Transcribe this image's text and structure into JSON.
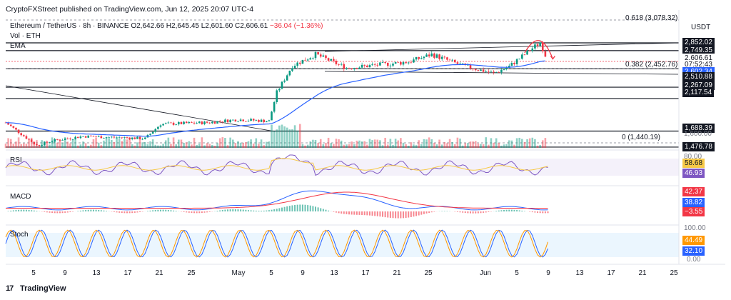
{
  "header": {
    "publisher": "CryptoFXStreet published on TradingView.com, Jun 12, 2025 20:07 UTC-4",
    "symbol": "Ethereum / TetherUS · 8h · BINANCE",
    "ohlc": "O2,642.66 H2,645.45 L2,601.60 C2,606.61",
    "change": "−36.04 (−1.36%)",
    "vol_label": "Vol · ETH",
    "ema_label": "EMA"
  },
  "currency": "USDT",
  "fib_labels": {
    "f618": "0.618 (3,078.32)",
    "f382": "0.382 (2,452.76)",
    "f0": "0 (1,440.19)"
  },
  "price_tags": [
    {
      "text": "2,852.02",
      "price": 2852.02,
      "bg": "#131722",
      "fg": "#ffffff"
    },
    {
      "text": "2,749.35",
      "price": 2749.35,
      "bg": "#131722",
      "fg": "#ffffff"
    },
    {
      "text": "2,606.61",
      "price": 2640,
      "bg": "#ffffff",
      "fg": "#131722"
    },
    {
      "text": "07:52:43",
      "price": 2560,
      "bg": "#ffffff",
      "fg": "#131722"
    },
    {
      "text": "2,602.34",
      "price": 2470,
      "bg": "#2962ff",
      "fg": "#ffffff"
    },
    {
      "text": "2,510.88",
      "price": 2400,
      "bg": "#131722",
      "fg": "#ffffff"
    },
    {
      "text": "2,267.09",
      "price": 2290,
      "bg": "#131722",
      "fg": "#ffffff"
    },
    {
      "text": "2,117.54",
      "price": 2190,
      "bg": "#131722",
      "fg": "#ffffff"
    },
    {
      "text": "1,688.39",
      "price": 1720,
      "bg": "#131722",
      "fg": "#ffffff"
    },
    {
      "text": "1,476.78",
      "price": 1475,
      "bg": "#131722",
      "fg": "#ffffff"
    }
  ],
  "axis_text": {
    "price_partial": "1,600.00"
  },
  "indicators": {
    "rsi": {
      "label": "RSI",
      "values": [
        "58.68",
        "46.93"
      ],
      "top_tick": "80.00",
      "colors": [
        "#f7c948",
        "#7e57c2"
      ]
    },
    "macd": {
      "label": "MACD",
      "values": [
        "42.37",
        "38.82",
        "−3.55"
      ],
      "colors": [
        "#f23645",
        "#2962ff",
        "#f23645"
      ]
    },
    "stoch": {
      "label": "Stoch",
      "values": [
        "44.49",
        "32.10"
      ],
      "ticks": [
        "100.00",
        "0.00"
      ],
      "colors": [
        "#ff9800",
        "#2962ff"
      ]
    }
  },
  "x_labels": [
    "5",
    "9",
    "13",
    "17",
    "21",
    "25",
    "May",
    "5",
    "9",
    "13",
    "17",
    "21",
    "25",
    "Jun",
    "5",
    "9",
    "13",
    "17",
    "21",
    "25"
  ],
  "colors": {
    "up": "#089981",
    "down": "#f23645",
    "ema": "#2962ff",
    "rsi": "#7e57c2",
    "rsi_ma": "#f7c948",
    "stoch_k": "#2962ff",
    "stoch_d": "#ff9800"
  },
  "footer": {
    "brand": "TradingView"
  },
  "chart_data": {
    "type": "candlestick",
    "title": "Ethereum / TetherUS · 8h · BINANCE",
    "x_range": [
      "Apr 3",
      "Jun 26"
    ],
    "y_unit": "USDT",
    "approx_close_path": [
      {
        "x": "Apr 3",
        "y": 1800
      },
      {
        "x": "Apr 7",
        "y": 1500
      },
      {
        "x": "Apr 9",
        "y": 1560
      },
      {
        "x": "Apr 13",
        "y": 1620
      },
      {
        "x": "Apr 21",
        "y": 1590
      },
      {
        "x": "Apr 23",
        "y": 1780
      },
      {
        "x": "Apr 29",
        "y": 1800
      },
      {
        "x": "May 3",
        "y": 1840
      },
      {
        "x": "May 7",
        "y": 1820
      },
      {
        "x": "May 8",
        "y": 2200
      },
      {
        "x": "May 10",
        "y": 2550
      },
      {
        "x": "May 13",
        "y": 2700
      },
      {
        "x": "May 17",
        "y": 2520
      },
      {
        "x": "May 25",
        "y": 2600
      },
      {
        "x": "May 28",
        "y": 2700
      },
      {
        "x": "Jun 1",
        "y": 2550
      },
      {
        "x": "Jun 5",
        "y": 2450
      },
      {
        "x": "Jun 7",
        "y": 2540
      },
      {
        "x": "Jun 10",
        "y": 2780
      },
      {
        "x": "Jun 11",
        "y": 2860
      },
      {
        "x": "Jun 12",
        "y": 2606.61
      }
    ],
    "horizontal_levels": [
      2852.02,
      2749.35,
      2510.88,
      2267.09,
      2117.54,
      1688.39,
      1476.78
    ],
    "fibonacci": [
      {
        "level": 0.618,
        "price": 3078.32
      },
      {
        "level": 0.382,
        "price": 2452.76
      },
      {
        "level": 0,
        "price": 1440.19
      }
    ],
    "ema_last": 2602.34,
    "last_price": 2606.61
  }
}
